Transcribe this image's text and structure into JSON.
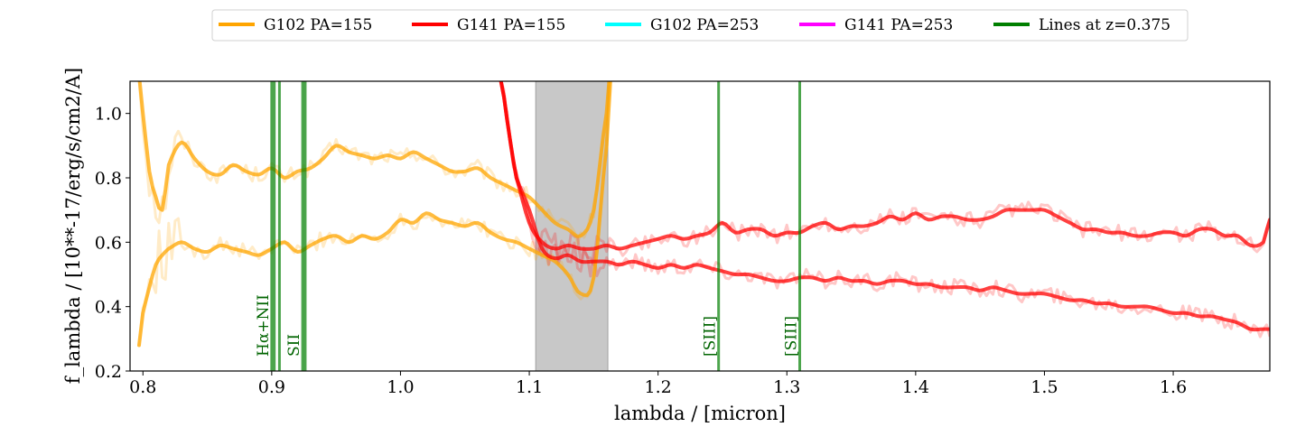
{
  "chart_data": {
    "type": "line",
    "xlabel": "lambda / [micron]",
    "ylabel": "f_lambda / [10**-17/erg/s/cm2/A]",
    "xlim": [
      0.79,
      1.675
    ],
    "ylim": [
      0.2,
      1.1
    ],
    "xticks": [
      "0.8",
      "0.9",
      "1.0",
      "1.1",
      "1.2",
      "1.3",
      "1.4",
      "1.5",
      "1.6"
    ],
    "yticks": [
      "0.2",
      "0.4",
      "0.6",
      "0.8",
      "1.0"
    ],
    "xtick_values": [
      0.8,
      0.9,
      1.0,
      1.1,
      1.2,
      1.3,
      1.4,
      1.5,
      1.6
    ],
    "ytick_values": [
      0.2,
      0.4,
      0.6,
      0.8,
      1.0
    ],
    "grid": false,
    "legend": {
      "placement": "top-center",
      "entries": [
        {
          "label": "G102 PA=155",
          "color": "#ffa500"
        },
        {
          "label": "G141 PA=155",
          "color": "#ff0000"
        },
        {
          "label": "G102 PA=253",
          "color": "#00ffff"
        },
        {
          "label": "G141 PA=253",
          "color": "#ff00ff"
        },
        {
          "label": "Lines at z=0.375",
          "color": "#007f00"
        }
      ]
    },
    "shaded_region": {
      "x": [
        1.105,
        1.161
      ],
      "color": "#c8c8c8"
    },
    "emission_lines": [
      {
        "label": "Hα+NII",
        "x": [
          0.9,
          0.902,
          0.906
        ]
      },
      {
        "label": "SII",
        "x": [
          0.924,
          0.926
        ]
      },
      {
        "label": "[SIII]",
        "x": [
          1.247
        ]
      },
      {
        "label": "[SIII]",
        "x": [
          1.31
        ]
      }
    ],
    "series": [
      {
        "name": "G102 PA=155",
        "color": "#ffa500",
        "x": [
          0.797,
          0.8,
          0.805,
          0.81,
          0.815,
          0.82,
          0.83,
          0.84,
          0.85,
          0.86,
          0.87,
          0.88,
          0.89,
          0.9,
          0.91,
          0.92,
          0.93,
          0.94,
          0.95,
          0.96,
          0.97,
          0.98,
          0.99,
          1.0,
          1.01,
          1.02,
          1.03,
          1.04,
          1.05,
          1.06,
          1.07,
          1.08,
          1.09,
          1.1,
          1.11,
          1.12,
          1.13,
          1.14,
          1.15,
          1.16,
          1.162
        ],
        "y": [
          1.12,
          1.0,
          0.82,
          0.74,
          0.7,
          0.84,
          0.91,
          0.86,
          0.82,
          0.81,
          0.84,
          0.82,
          0.81,
          0.83,
          0.8,
          0.82,
          0.83,
          0.86,
          0.9,
          0.88,
          0.87,
          0.86,
          0.87,
          0.86,
          0.88,
          0.86,
          0.84,
          0.82,
          0.82,
          0.83,
          0.8,
          0.78,
          0.76,
          0.74,
          0.7,
          0.66,
          0.64,
          0.62,
          0.7,
          1.0,
          1.1
        ]
      },
      {
        "name": "G102 PA=155",
        "color": "#ffa500",
        "x": [
          0.797,
          0.8,
          0.805,
          0.81,
          0.815,
          0.82,
          0.83,
          0.84,
          0.85,
          0.86,
          0.87,
          0.88,
          0.89,
          0.9,
          0.91,
          0.92,
          0.93,
          0.94,
          0.95,
          0.96,
          0.97,
          0.98,
          0.99,
          1.0,
          1.01,
          1.02,
          1.03,
          1.04,
          1.05,
          1.06,
          1.07,
          1.08,
          1.09,
          1.1,
          1.11,
          1.12,
          1.13,
          1.14,
          1.15,
          1.16,
          1.163
        ],
        "y": [
          0.28,
          0.38,
          0.46,
          0.53,
          0.56,
          0.58,
          0.6,
          0.58,
          0.57,
          0.59,
          0.58,
          0.57,
          0.56,
          0.58,
          0.6,
          0.57,
          0.59,
          0.61,
          0.62,
          0.6,
          0.62,
          0.61,
          0.63,
          0.67,
          0.66,
          0.69,
          0.67,
          0.66,
          0.65,
          0.66,
          0.63,
          0.61,
          0.6,
          0.58,
          0.56,
          0.54,
          0.5,
          0.44,
          0.49,
          0.9,
          1.1
        ]
      },
      {
        "name": "G141 PA=155",
        "color": "#ff0000",
        "x": [
          1.078,
          1.085,
          1.09,
          1.1,
          1.11,
          1.12,
          1.13,
          1.14,
          1.15,
          1.16,
          1.17,
          1.18,
          1.19,
          1.2,
          1.21,
          1.22,
          1.23,
          1.24,
          1.25,
          1.26,
          1.27,
          1.28,
          1.29,
          1.3,
          1.31,
          1.32,
          1.33,
          1.34,
          1.35,
          1.36,
          1.37,
          1.38,
          1.39,
          1.4,
          1.41,
          1.42,
          1.43,
          1.44,
          1.45,
          1.46,
          1.47,
          1.48,
          1.49,
          1.5,
          1.51,
          1.52,
          1.53,
          1.54,
          1.55,
          1.56,
          1.57,
          1.58,
          1.59,
          1.6,
          1.61,
          1.62,
          1.63,
          1.64,
          1.65,
          1.66,
          1.67,
          1.675
        ],
        "y": [
          1.1,
          0.92,
          0.8,
          0.66,
          0.6,
          0.58,
          0.59,
          0.58,
          0.58,
          0.59,
          0.58,
          0.59,
          0.6,
          0.61,
          0.62,
          0.61,
          0.62,
          0.63,
          0.66,
          0.63,
          0.64,
          0.64,
          0.62,
          0.63,
          0.63,
          0.65,
          0.66,
          0.64,
          0.65,
          0.65,
          0.66,
          0.68,
          0.67,
          0.69,
          0.67,
          0.68,
          0.68,
          0.67,
          0.67,
          0.68,
          0.7,
          0.7,
          0.7,
          0.7,
          0.68,
          0.66,
          0.64,
          0.64,
          0.63,
          0.63,
          0.62,
          0.62,
          0.63,
          0.63,
          0.62,
          0.64,
          0.64,
          0.62,
          0.62,
          0.59,
          0.6,
          0.67
        ]
      },
      {
        "name": "G141 PA=155",
        "color": "#ff0000",
        "x": [
          1.078,
          1.085,
          1.09,
          1.1,
          1.11,
          1.12,
          1.13,
          1.14,
          1.15,
          1.16,
          1.17,
          1.18,
          1.19,
          1.2,
          1.21,
          1.22,
          1.23,
          1.24,
          1.25,
          1.26,
          1.27,
          1.28,
          1.29,
          1.3,
          1.31,
          1.32,
          1.33,
          1.34,
          1.35,
          1.36,
          1.37,
          1.38,
          1.39,
          1.4,
          1.41,
          1.42,
          1.43,
          1.44,
          1.45,
          1.46,
          1.47,
          1.48,
          1.49,
          1.5,
          1.51,
          1.52,
          1.53,
          1.54,
          1.55,
          1.56,
          1.57,
          1.58,
          1.59,
          1.6,
          1.61,
          1.62,
          1.63,
          1.64,
          1.65,
          1.66,
          1.67,
          1.675
        ],
        "y": [
          1.1,
          0.92,
          0.8,
          0.7,
          0.58,
          0.55,
          0.56,
          0.54,
          0.54,
          0.54,
          0.53,
          0.54,
          0.53,
          0.52,
          0.53,
          0.52,
          0.53,
          0.52,
          0.51,
          0.5,
          0.5,
          0.49,
          0.48,
          0.48,
          0.49,
          0.49,
          0.48,
          0.49,
          0.48,
          0.48,
          0.47,
          0.48,
          0.48,
          0.47,
          0.47,
          0.46,
          0.46,
          0.46,
          0.45,
          0.46,
          0.45,
          0.44,
          0.44,
          0.44,
          0.43,
          0.42,
          0.42,
          0.41,
          0.41,
          0.4,
          0.4,
          0.4,
          0.39,
          0.38,
          0.38,
          0.37,
          0.37,
          0.36,
          0.35,
          0.33,
          0.33,
          0.33
        ]
      }
    ]
  }
}
